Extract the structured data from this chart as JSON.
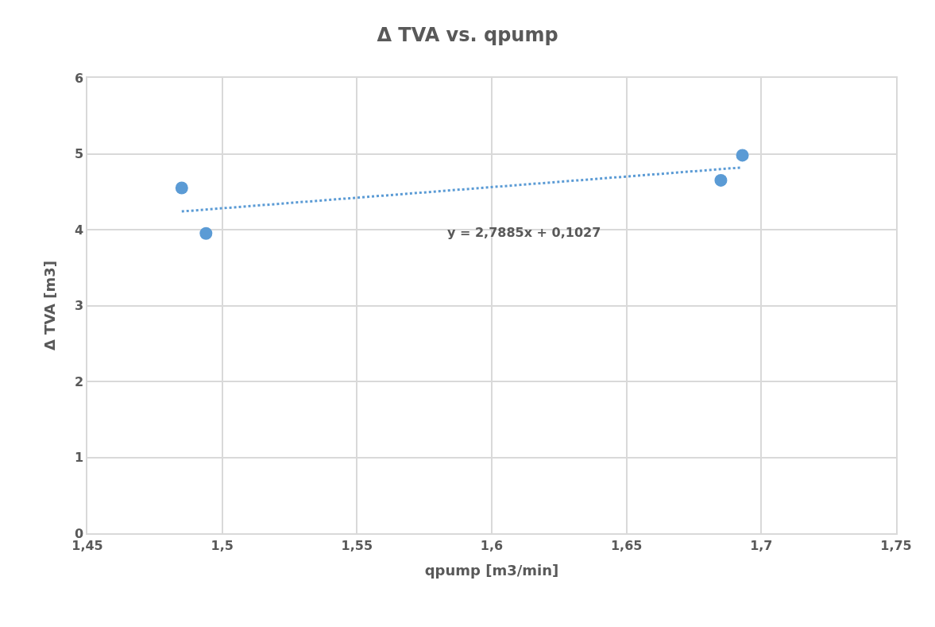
{
  "chart_data": {
    "type": "scatter",
    "title": "Δ TVA vs. qpump",
    "xlabel": "qpump [m3/min]",
    "ylabel": "Δ TVA [m3]",
    "series": [
      {
        "color": "#5b9bd5",
        "x": [
          1.485,
          1.494,
          1.685,
          1.693
        ],
        "values": [
          4.55,
          3.95,
          4.65,
          4.98
        ]
      },
      {
        "type": "line",
        "color": "#5b9bd5",
        "line_style": "dotted",
        "marker": "none",
        "x": [
          1.485,
          1.693
        ],
        "values": [
          4.24,
          4.82
        ]
      }
    ],
    "marker": "circle",
    "grid": true,
    "xlim": [
      1.45,
      1.75
    ],
    "xticks": [
      {
        "value": 1.45,
        "label": "1,45"
      },
      {
        "value": 1.5,
        "label": "1,5"
      },
      {
        "value": 1.55,
        "label": "1,55"
      },
      {
        "value": 1.6,
        "label": "1,6"
      },
      {
        "value": 1.65,
        "label": "1,65"
      },
      {
        "value": 1.7,
        "label": "1,7"
      },
      {
        "value": 1.75,
        "label": "1,75"
      }
    ],
    "ylim": [
      0,
      6
    ],
    "yticks": [
      0,
      1,
      2,
      3,
      4,
      5,
      6
    ],
    "annotations": [
      "y = 2,7885x + 0,1027"
    ]
  }
}
